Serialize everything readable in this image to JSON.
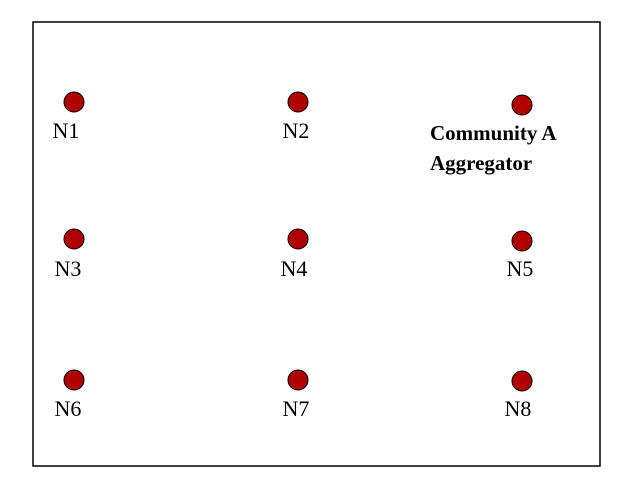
{
  "nodes": [
    {
      "label": "N1"
    },
    {
      "label": "N2"
    },
    {
      "label": "Community A\nAggregator"
    },
    {
      "label": "N3"
    },
    {
      "label": "N4"
    },
    {
      "label": "N5"
    },
    {
      "label": "N6"
    },
    {
      "label": "N7"
    },
    {
      "label": "N8"
    }
  ]
}
